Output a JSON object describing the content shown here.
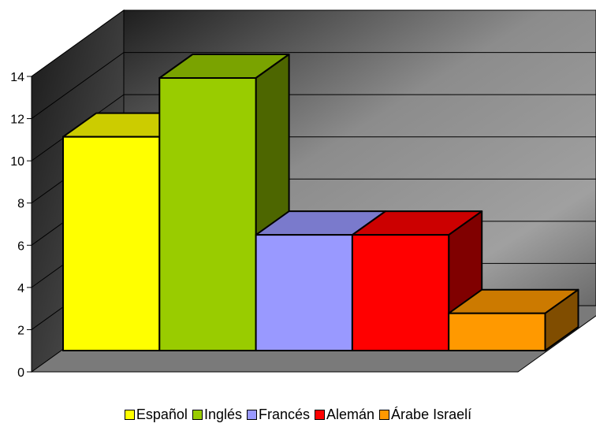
{
  "chart_data": {
    "type": "bar",
    "title": "",
    "xlabel": "",
    "ylabel": "",
    "categories": [
      "Español",
      "Inglés",
      "Francés",
      "Alemán",
      "Árabe Israelí"
    ],
    "values": [
      10.9,
      13.9,
      5.9,
      5.9,
      1.9
    ],
    "colors": [
      "#ffff00",
      "#99cc00",
      "#9999ff",
      "#ff0000",
      "#ff9900"
    ],
    "ylim": [
      0,
      14
    ],
    "yticks": [
      0,
      2,
      4,
      6,
      8,
      10,
      12,
      14
    ],
    "grid": true,
    "style": "3d-column",
    "legend_position": "bottom"
  }
}
